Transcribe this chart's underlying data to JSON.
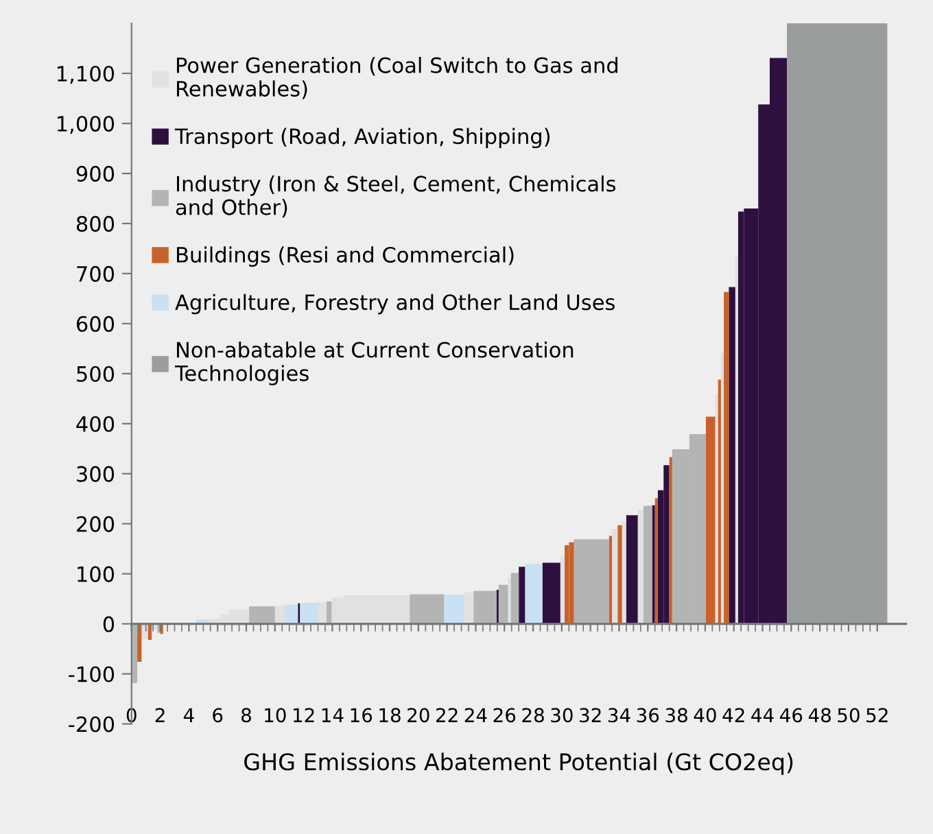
{
  "chart_data": {
    "type": "bar",
    "xlabel": "GHG Emissions Abatement Potential (Gt CO2eq)",
    "xlim": [
      0,
      54
    ],
    "ylim": [
      -200,
      1200
    ],
    "xticks": [
      0,
      2,
      4,
      6,
      8,
      10,
      12,
      14,
      16,
      18,
      20,
      22,
      24,
      26,
      28,
      30,
      32,
      34,
      36,
      38,
      40,
      42,
      44,
      46,
      48,
      50,
      52
    ],
    "yticks": [
      -200,
      -100,
      0,
      100,
      200,
      300,
      400,
      500,
      600,
      700,
      800,
      900,
      {
        "value": 1000,
        "label": "1,000"
      },
      {
        "value": 1100,
        "label": "1,100"
      }
    ],
    "legend": "top left",
    "series": [
      {
        "name": "Power Generation (Coal Switch to Gas and\nRenewables)",
        "color": "#e1e1e1",
        "x": [
          0.925,
          1.6,
          3.35,
          5.85,
          6.5,
          7.5,
          10.325,
          13.3,
          14.375,
          17.1,
          23.525,
          26.35,
          30.05,
          33.7,
          34.35,
          35.5,
          40.8,
          41.2,
          42.2
        ],
        "values": [
          -30,
          -12,
          null,
          10,
          18,
          28,
          36,
          44,
          53,
          57,
          63,
          91,
          134,
          190,
          205,
          228,
          459,
          541,
          735
        ]
      },
      {
        "name": "Transport (Road, Aviation, Shipping)",
        "color": "#2e1040",
        "x": [
          11.675,
          25.525,
          27.225,
          29.275,
          34.9,
          36.4,
          36.9,
          37.3,
          41.875,
          42.5,
          43.2,
          44.1,
          45.1
        ],
        "values": [
          41,
          68,
          114,
          122,
          217,
          237,
          267,
          317,
          673,
          824,
          830,
          1038,
          1131
        ]
      },
      {
        "name": "Industry (Iron & Steel, Cement, Chemicals\nand Other)",
        "color": "#b3b5b5",
        "x": [
          0.2,
          1.9,
          9.1,
          13.775,
          20.6,
          24.65,
          25.925,
          26.725,
          32.075,
          36.0,
          38.3,
          39.475
        ],
        "values": [
          -118,
          -18,
          35,
          45,
          59,
          66,
          78,
          102,
          169,
          236,
          349,
          379
        ]
      },
      {
        "name": "Buildings (Resi and Commercial)",
        "color": "#c8622a",
        "x": [
          0.55,
          1.275,
          2.1,
          30.35,
          30.675,
          33.4,
          34.05,
          36.6,
          37.6,
          40.375,
          41.0,
          41.475
        ],
        "values": [
          -76,
          -32,
          -20,
          157,
          163,
          176,
          197,
          251,
          333,
          414,
          488,
          663
        ]
      },
      {
        "name": "Agriculture, Forestry and Other Land Uses",
        "color": "#c9e1f2",
        "x": [
          5.0,
          11.125,
          12.375,
          22.5,
          28.05
        ],
        "values": [
          9,
          38,
          42,
          58,
          120
        ]
      },
      {
        "name": "Non-abatable at Current Conservation\nTechnologies",
        "color": "#9a9d9d",
        "x": [
          49.2
        ],
        "values": [
          1200
        ]
      }
    ]
  }
}
